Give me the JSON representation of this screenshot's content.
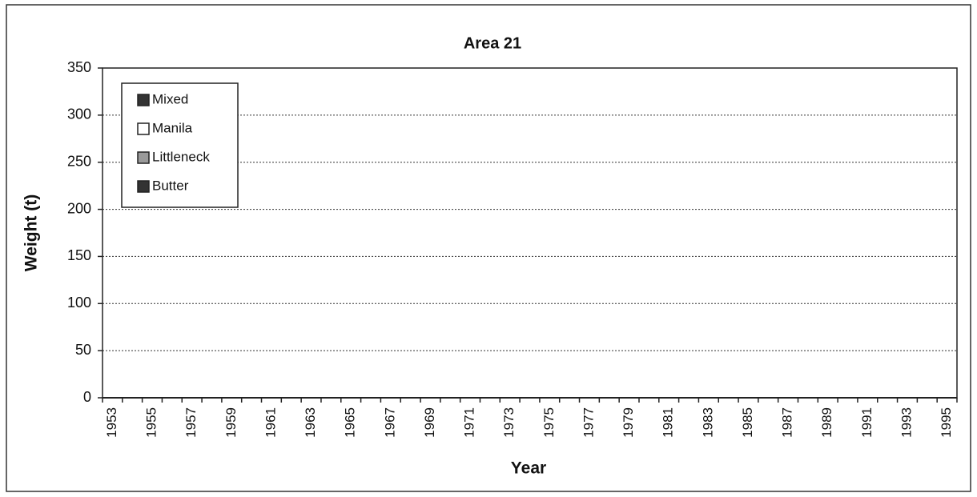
{
  "chart_data": {
    "type": "stacked-bar",
    "title": "Area 21",
    "x_label": "Year",
    "y_label": "Weight (t)",
    "categories": [
      "1953",
      null,
      "1955",
      null,
      "1957",
      null,
      "1959",
      null,
      "1961",
      null,
      "1963",
      null,
      "1965",
      null,
      "1967",
      null,
      "1969",
      null,
      "1971",
      null,
      "1973",
      null,
      "1975",
      null,
      "1977",
      null,
      "1979",
      null,
      "1981",
      null,
      "1983",
      null,
      "1985",
      null,
      "1987",
      null,
      "1989",
      null,
      "1991",
      null,
      "1993",
      null,
      "1995"
    ],
    "series": [
      {
        "name": "Mixed",
        "color": "#333333",
        "values": [
          null,
          null,
          null,
          null,
          null,
          null,
          null,
          null,
          null,
          null,
          null,
          null,
          null,
          null,
          null,
          null,
          null,
          null,
          null,
          null,
          null,
          null,
          null,
          null,
          null,
          null,
          null,
          null,
          null,
          null,
          null,
          null,
          null,
          null,
          null,
          null,
          null,
          null,
          null,
          null,
          null,
          null,
          null
        ]
      },
      {
        "name": "Manila",
        "color": "#ffffff",
        "values": [
          null,
          null,
          null,
          null,
          null,
          null,
          null,
          null,
          null,
          null,
          null,
          null,
          null,
          null,
          null,
          null,
          null,
          null,
          null,
          null,
          null,
          null,
          null,
          null,
          null,
          null,
          null,
          null,
          null,
          null,
          null,
          null,
          null,
          null,
          null,
          null,
          null,
          null,
          null,
          null,
          null,
          null,
          null
        ]
      },
      {
        "name": "Littleneck",
        "color": "#9a9a9a",
        "values": [
          null,
          null,
          null,
          null,
          null,
          null,
          null,
          null,
          null,
          null,
          null,
          null,
          null,
          null,
          null,
          null,
          null,
          null,
          null,
          null,
          null,
          null,
          null,
          null,
          null,
          null,
          null,
          null,
          null,
          null,
          null,
          null,
          null,
          null,
          null,
          null,
          null,
          null,
          null,
          null,
          null,
          null,
          null
        ]
      },
      {
        "name": "Butter",
        "color": "#333333",
        "values": [
          null,
          null,
          null,
          null,
          null,
          null,
          null,
          null,
          null,
          null,
          null,
          null,
          null,
          null,
          null,
          null,
          null,
          null,
          null,
          null,
          null,
          null,
          null,
          null,
          null,
          null,
          null,
          null,
          null,
          null,
          null,
          null,
          null,
          null,
          null,
          null,
          null,
          null,
          null,
          null,
          null,
          null,
          null
        ]
      }
    ],
    "ylim": [
      0,
      350
    ],
    "yticks": [
      0,
      50,
      100,
      150,
      200,
      250,
      300,
      350
    ],
    "grid": true,
    "legend": "upper left"
  }
}
